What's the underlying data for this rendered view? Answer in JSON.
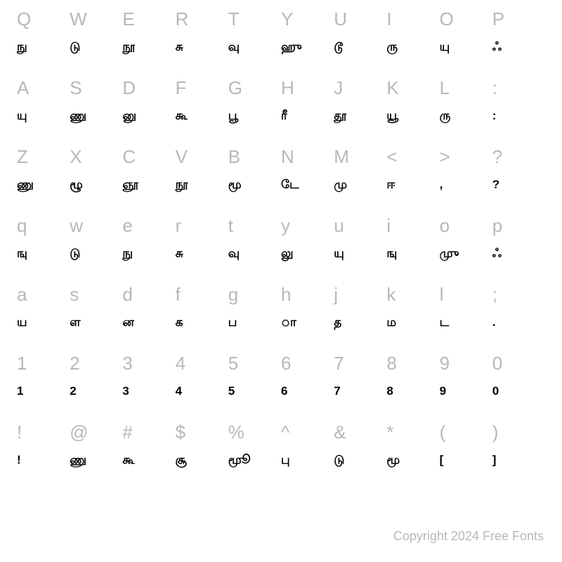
{
  "rows": [
    {
      "keys": [
        "Q",
        "W",
        "E",
        "R",
        "T",
        "Y",
        "U",
        "I",
        "O",
        "P"
      ],
      "glyphs": [
        "நு",
        "டு",
        "நூ",
        "சு",
        "வு",
        "ஹு",
        "டூ",
        "ரு",
        "யு",
        "ஃ"
      ]
    },
    {
      "keys": [
        "A",
        "S",
        "D",
        "F",
        "G",
        "H",
        "J",
        "K",
        "L",
        ":"
      ],
      "glyphs": [
        "யு",
        "ணு",
        "னு",
        "கூ",
        "பூ",
        "ரீ",
        "தூ",
        "யூ",
        "ரு",
        ":"
      ]
    },
    {
      "keys": [
        "Z",
        "X",
        "C",
        "V",
        "B",
        "N",
        "M",
        "<",
        ">",
        "?"
      ],
      "glyphs": [
        "ணு",
        "ழூ",
        "ஞூ",
        "நூ",
        "மூ",
        "டே",
        "மு",
        "ஈ",
        ",",
        "?"
      ]
    },
    {
      "keys": [
        "q",
        "w",
        "e",
        "r",
        "t",
        "y",
        "u",
        "i",
        "o",
        "p"
      ],
      "glyphs": [
        "ஙு",
        "டு",
        "நு",
        "சு",
        "வு",
        "லு",
        "யு",
        "ஙு",
        "முு",
        "ஃ"
      ]
    },
    {
      "keys": [
        "a",
        "s",
        "d",
        "f",
        "g",
        "h",
        "j",
        "k",
        "l",
        ";"
      ],
      "glyphs": [
        "ய",
        "ள",
        "ன",
        "க",
        "ப",
        "ா",
        "த",
        "ம",
        "ட",
        "."
      ]
    },
    {
      "keys": [
        "1",
        "2",
        "3",
        "4",
        "5",
        "6",
        "7",
        "8",
        "9",
        "0"
      ],
      "glyphs": [
        "1",
        "2",
        "3",
        "4",
        "5",
        "6",
        "7",
        "8",
        "9",
        "0"
      ]
    },
    {
      "keys": [
        "!",
        "@",
        "#",
        "$",
        "%",
        "^",
        "&",
        "*",
        "(",
        ")"
      ],
      "glyphs": [
        "!",
        "ணு",
        "கூ",
        "சூ",
        "மூூ",
        "பு",
        "டு",
        "மூ",
        "[",
        "]"
      ]
    }
  ],
  "copyright": "Copyright 2024 Free Fonts",
  "style": {
    "key_color": "#b8b8b8",
    "glyph_color": "#000000",
    "background": "#ffffff",
    "key_fontsize": 26,
    "glyph_fontsize": 17,
    "columns": 10
  }
}
